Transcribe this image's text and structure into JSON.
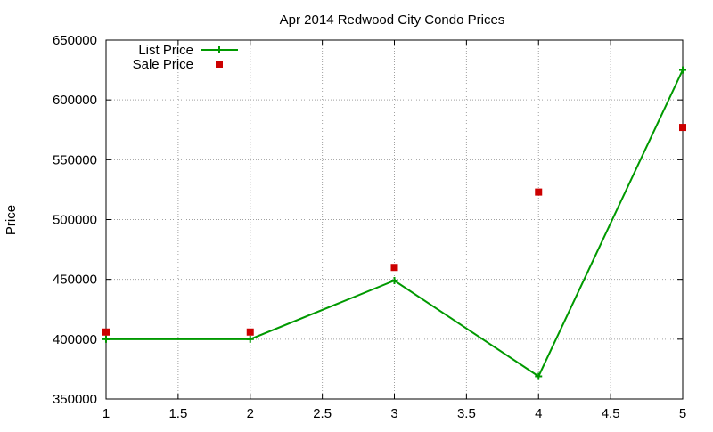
{
  "chart_data": {
    "type": "line",
    "title": "Apr 2014 Redwood City Condo Prices",
    "xlabel": "",
    "ylabel": "Price",
    "xlim": [
      1,
      5
    ],
    "ylim": [
      350000,
      650000
    ],
    "x_ticks": [
      1,
      1.5,
      2,
      2.5,
      3,
      3.5,
      4,
      4.5,
      5
    ],
    "y_ticks": [
      350000,
      400000,
      450000,
      500000,
      550000,
      600000,
      650000
    ],
    "grid": true,
    "legend_position": "top-left",
    "series": [
      {
        "name": "List Price",
        "style": "lines+points",
        "marker": "plus",
        "color": "#009900",
        "x": [
          1,
          2,
          3,
          4,
          5
        ],
        "y": [
          400000,
          400000,
          449000,
          369000,
          625000
        ]
      },
      {
        "name": "Sale Price",
        "style": "points",
        "marker": "square",
        "color": "#cc0000",
        "x": [
          1,
          2,
          3,
          4,
          5
        ],
        "y": [
          406000,
          406000,
          460000,
          523000,
          577000
        ]
      }
    ]
  }
}
